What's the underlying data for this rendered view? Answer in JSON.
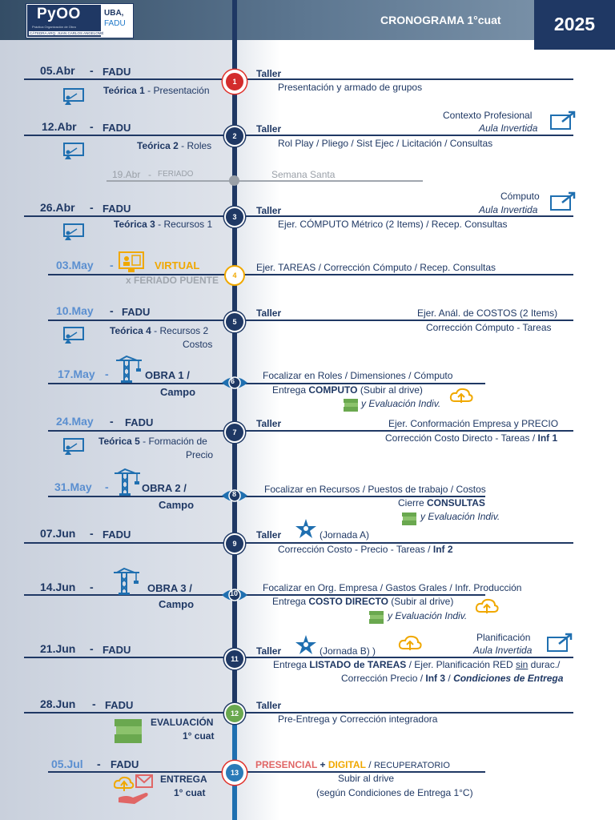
{
  "header": {
    "logo_main": "PyOO",
    "logo_sub": "Práctica Organización de Obra",
    "logo_chair": "CÁTEDRA ARQ. JUAN CARLOS ANGELOMÉ",
    "logo_uba": "UBA,",
    "logo_fadu": "FADU",
    "title": "CRONOGRAMA  1°cuat",
    "year": "2025"
  },
  "r1": {
    "date": "05.Abr",
    "sep": "-",
    "place": "FADU",
    "theory_b": "Teórica 1",
    "theory": " - Presentación",
    "node": "1",
    "kind": "Taller",
    "l1": "Presentación y armado de grupos"
  },
  "r2": {
    "date": "12.Abr",
    "sep": "-",
    "place": "FADU",
    "theory_b": "Teórica 2",
    "theory": " - Roles",
    "node": "2",
    "kind": "Taller",
    "l1": "Rol Play / Pliego / Sist Ejec / Licitación / Consultas",
    "ctx": "Contexto Profesional",
    "aula": "Aula Invertida"
  },
  "r3": {
    "date": "19.Abr",
    "sep": "-",
    "place": "FERIADO",
    "note": "Semana Santa"
  },
  "r4": {
    "date": "26.Abr",
    "sep": "-",
    "place": "FADU",
    "theory_b": "Teórica 3",
    "theory": " - Recursos 1",
    "node": "3",
    "kind": "Taller",
    "l1": "Ejer. CÓMPUTO Métrico (2 Items) / Recep. Consultas",
    "ctx": "Cómputo",
    "aula": "Aula Invertida"
  },
  "r5": {
    "date": "03.May",
    "sep": "-",
    "place": "VIRTUAL",
    "sub": "x FERIADO PUENTE",
    "node": "4",
    "l1": "Ejer. TAREAS / Corrección Cómputo / Recep. Consultas"
  },
  "r6": {
    "date": "10.May",
    "sep": "-",
    "place": "FADU",
    "theory_b": "Teórica 4",
    "theory": " - Recursos  2",
    "theory2": "Costos",
    "node": "5",
    "kind": "Taller",
    "l1": "Ejer. Anál. de COSTOS (2 Items)",
    "l2": "Corrección Cómputo - Tareas"
  },
  "r7": {
    "date": "17.May",
    "sep": "-",
    "place": "OBRA  1 /",
    "place2": "Campo",
    "node": "6",
    "l1": "Focalizar en Roles / Dimensiones / Cómputo",
    "l2a": "Entrega ",
    "l2b": "COMPUTO",
    "l2c": " (Subir al drive)",
    "l3": "y Evaluación Indiv."
  },
  "r8": {
    "date": "24.May",
    "sep": "-",
    "place": "FADU",
    "theory_b": "Teórica 5",
    "theory": " - Formación de",
    "theory2": "Precio",
    "node": "7",
    "kind": "Taller",
    "l1": "Ejer. Conformación Empresa y PRECIO",
    "l2a": "Corrección Costo Directo - Tareas / ",
    "l2b": "Inf 1"
  },
  "r9": {
    "date": "31.May",
    "sep": "-",
    "place": "OBRA 2 /",
    "place2": "Campo",
    "node": "8",
    "l1": "Focalizar en Recursos / Puestos de trabajo / Costos",
    "l2a": "Cierre ",
    "l2b": "CONSULTAS",
    "l3": "y Evaluación Indiv."
  },
  "r10": {
    "date": "07.Jun",
    "sep": "-",
    "place": "FADU",
    "node": "9",
    "kind": "Taller",
    "jornada": "(Jornada A)",
    "l2a": "Corrección Costo - Precio - Tareas / ",
    "l2b": "Inf 2"
  },
  "r11": {
    "date": "14.Jun",
    "sep": "-",
    "place": "OBRA 3 /",
    "place2": "Campo",
    "node": "10",
    "l1": "Focalizar en Org. Empresa / Gastos Grales / Infr. Producción",
    "l2a": "Entrega ",
    "l2b": "COSTO DIRECTO",
    "l2c": " (Subir al drive)",
    "l3": "y Evaluación Indiv."
  },
  "r12": {
    "date": "21.Jun",
    "sep": "-",
    "place": "FADU",
    "node": "11",
    "kind": "Taller",
    "jornada": "(Jornada B) )",
    "ctx": "Planificación",
    "aula": "Aula Invertida",
    "l2a": "Entrega ",
    "l2b": "LISTADO de TAREAS",
    "l2c": " / Ejer. Planificación RED ",
    "l2d": "sin",
    "l2e": " durac./",
    "l3a": "Corrección Precio / ",
    "l3b": "Inf 3",
    "l3c": " / ",
    "l3d": "Condiciones de Entrega"
  },
  "r13": {
    "date": "28.Jun",
    "sep": "-",
    "place": "FADU",
    "eval1": "EVALUACIÓN",
    "eval2": "1° cuat",
    "node": "12",
    "kind": "Taller",
    "l1": "Pre-Entrega y Corrección integradora"
  },
  "r14": {
    "date": "05.Jul",
    "sep": "-",
    "place": "FADU",
    "ent1": "ENTREGA",
    "ent2": "1° cuat",
    "node": "13",
    "pres": "PRESENCIAL",
    "plus": " + ",
    "dig": "DIGITAL",
    "slash": " / ",
    "rec": "RECUPERATORIO",
    "l2": "Subir al drive",
    "l3": "(según Condiciones de Entrega 1°C)"
  },
  "colors": {
    "navy": "#1f3864",
    "light_blue": "#5b8fd0",
    "orange": "#f0a800",
    "red": "#e0302a",
    "green": "#6aa84f"
  }
}
